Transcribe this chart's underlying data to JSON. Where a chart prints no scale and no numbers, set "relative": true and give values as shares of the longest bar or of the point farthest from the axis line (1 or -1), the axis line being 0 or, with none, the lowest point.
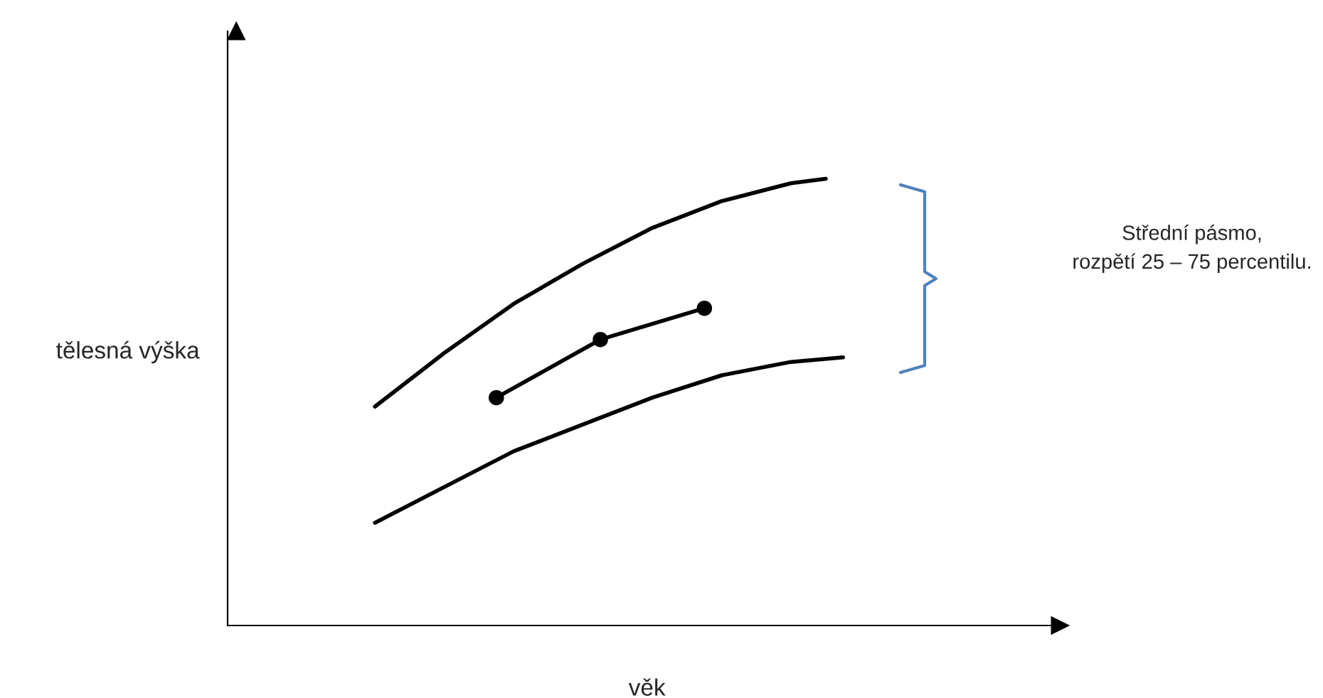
{
  "chart_data": {
    "type": "line",
    "relative": true,
    "xlabel": "věk",
    "ylabel": "tělesná výška",
    "annotations": [
      "Střední pásmo,\nrozpětí 25 – 75 percentilu."
    ],
    "tick_labels": false,
    "categories": [
      null,
      null,
      null,
      null,
      null,
      null,
      null,
      null,
      null,
      null,
      null,
      null,
      null,
      null,
      null,
      null,
      null,
      null,
      null,
      null,
      null,
      null,
      null,
      null,
      null,
      null,
      null,
      null,
      null,
      null,
      null,
      null,
      null,
      null,
      null,
      null,
      null,
      null,
      null,
      null,
      null,
      null,
      null,
      null,
      null,
      null,
      null,
      null
    ],
    "series": [
      {
        "color": "#000000",
        "marker": "none",
        "values": [
          null,
          null,
          null,
          null,
          null,
          null,
          null,
          null,
          0.49,
          null,
          null,
          null,
          0.61,
          null,
          null,
          null,
          0.72,
          null,
          null,
          null,
          0.81,
          null,
          null,
          null,
          0.89,
          null,
          null,
          null,
          0.95,
          null,
          null,
          null,
          0.99,
          null,
          1.0,
          null,
          null,
          null,
          null,
          null,
          null,
          null,
          null,
          null,
          null,
          null,
          null,
          null
        ]
      },
      {
        "color": "#000000",
        "marker": "none",
        "values": [
          null,
          null,
          null,
          null,
          null,
          null,
          null,
          null,
          0.23,
          null,
          null,
          null,
          0.31,
          null,
          null,
          null,
          0.39,
          null,
          null,
          null,
          0.45,
          null,
          null,
          null,
          0.51,
          null,
          null,
          null,
          0.56,
          null,
          null,
          null,
          0.59,
          null,
          null,
          0.6,
          null,
          null,
          null,
          null,
          null,
          null,
          null,
          null,
          null,
          null,
          null,
          null
        ]
      },
      {
        "color": "#000000",
        "marker": "circle",
        "values": [
          null,
          null,
          null,
          null,
          null,
          null,
          null,
          null,
          null,
          null,
          null,
          null,
          null,
          null,
          null,
          0.51,
          null,
          null,
          null,
          null,
          null,
          0.64,
          null,
          null,
          null,
          null,
          null,
          0.71,
          null,
          null,
          null,
          null,
          null,
          null,
          null,
          null,
          null,
          null,
          null,
          null,
          null,
          null,
          null,
          null,
          null,
          null,
          null,
          null
        ]
      }
    ]
  }
}
